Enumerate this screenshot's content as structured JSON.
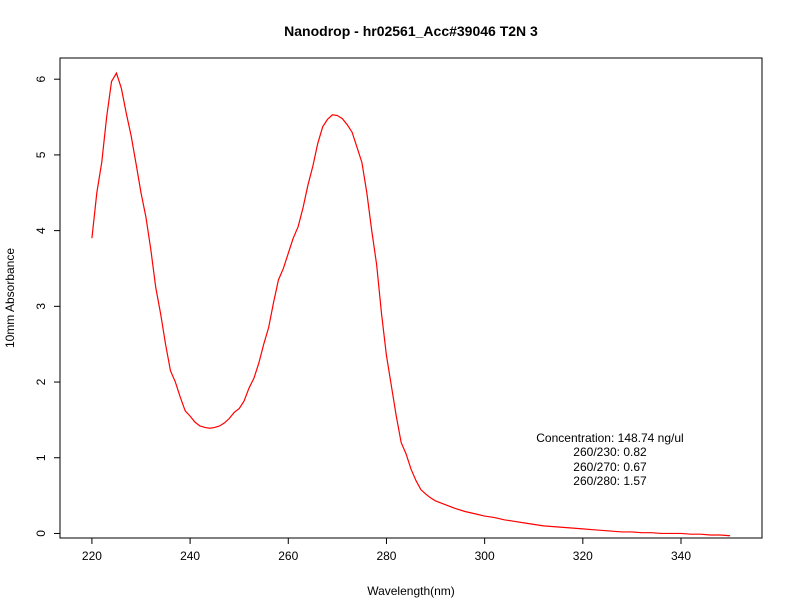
{
  "chart_data": {
    "type": "line",
    "title": "Nanodrop - hr02561_Acc#39046 T2N 3",
    "xlabel": "Wavelength(nm)",
    "ylabel": "10mm Absorbance",
    "xlim": [
      220,
      350
    ],
    "ylim": [
      -0.06,
      6.28
    ],
    "x_ticks": [
      220,
      240,
      260,
      280,
      300,
      320,
      340
    ],
    "y_ticks": [
      0,
      1,
      2,
      3,
      4,
      5,
      6
    ],
    "grid": false,
    "series": [
      {
        "color": "#ff0000",
        "x": [
          220,
          221,
          222,
          223,
          224,
          225,
          226,
          227,
          228,
          229,
          230,
          231,
          232,
          233,
          234,
          235,
          236,
          237,
          238,
          239,
          240,
          241,
          242,
          243,
          244,
          245,
          246,
          247,
          248,
          249,
          250,
          251,
          252,
          253,
          254,
          255,
          256,
          257,
          258,
          259,
          260,
          261,
          262,
          263,
          264,
          265,
          266,
          267,
          268,
          269,
          270,
          271,
          272,
          273,
          274,
          275,
          276,
          277,
          278,
          279,
          280,
          281,
          282,
          283,
          284,
          285,
          286,
          287,
          288,
          289,
          290,
          292,
          294,
          296,
          298,
          300,
          302,
          304,
          306,
          308,
          310,
          312,
          314,
          316,
          318,
          320,
          322,
          324,
          326,
          328,
          330,
          332,
          334,
          336,
          338,
          340,
          342,
          344,
          346,
          348,
          350
        ],
        "y": [
          3.9,
          4.5,
          4.9,
          5.5,
          5.97,
          6.08,
          5.88,
          5.55,
          5.25,
          4.88,
          4.5,
          4.18,
          3.75,
          3.25,
          2.9,
          2.5,
          2.15,
          2.0,
          1.8,
          1.62,
          1.55,
          1.47,
          1.42,
          1.4,
          1.39,
          1.4,
          1.42,
          1.46,
          1.52,
          1.6,
          1.65,
          1.75,
          1.92,
          2.05,
          2.25,
          2.5,
          2.72,
          3.05,
          3.35,
          3.5,
          3.7,
          3.9,
          4.05,
          4.3,
          4.6,
          4.85,
          5.15,
          5.37,
          5.47,
          5.53,
          5.52,
          5.48,
          5.4,
          5.3,
          5.1,
          4.9,
          4.5,
          4.0,
          3.55,
          2.9,
          2.35,
          1.95,
          1.55,
          1.2,
          1.05,
          0.85,
          0.7,
          0.58,
          0.52,
          0.47,
          0.43,
          0.38,
          0.33,
          0.29,
          0.26,
          0.23,
          0.21,
          0.18,
          0.16,
          0.14,
          0.12,
          0.1,
          0.09,
          0.08,
          0.07,
          0.06,
          0.05,
          0.04,
          0.03,
          0.02,
          0.02,
          0.01,
          0.01,
          0.0,
          0.0,
          0.0,
          -0.01,
          -0.01,
          -0.02,
          -0.02,
          -0.03
        ]
      }
    ],
    "annotations": [
      "Concentration: 148.74 ng/ul",
      "260/230: 0.82",
      "260/270: 0.67",
      "260/280: 1.57"
    ]
  }
}
